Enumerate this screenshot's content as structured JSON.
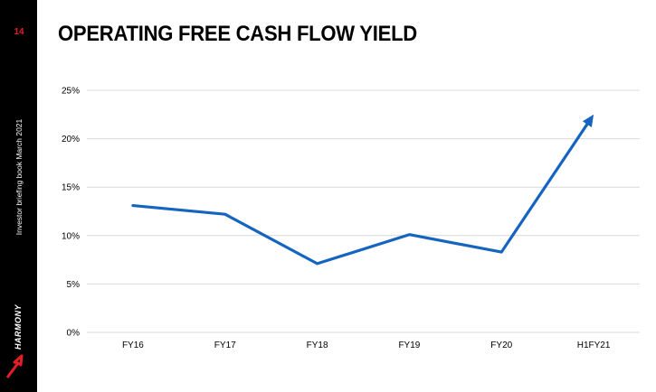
{
  "page": {
    "number": "14",
    "title": "OPERATING FREE CASH FLOW YIELD",
    "side_caption": "Investor briefing book March 2021",
    "logo_text": "HARMONY"
  },
  "colors": {
    "sidebar": "#000000",
    "page_number": "#e31e24",
    "line": "#1565c0",
    "grid": "#d9d9d9"
  },
  "chart_data": {
    "type": "line",
    "title": "",
    "xlabel": "",
    "ylabel": "",
    "categories": [
      "FY16",
      "FY17",
      "FY18",
      "FY19",
      "FY20",
      "H1FY21"
    ],
    "series": [
      {
        "values": [
          13.1,
          12.2,
          7.1,
          10.1,
          8.3,
          22.5
        ]
      }
    ],
    "ylim": [
      0,
      25
    ],
    "yticks": [
      0,
      5,
      10,
      15,
      20,
      25
    ],
    "ytick_labels": [
      "0%",
      "5%",
      "10%",
      "15%",
      "20%",
      "25%"
    ],
    "grid": true,
    "arrow_on_last_point": true
  }
}
